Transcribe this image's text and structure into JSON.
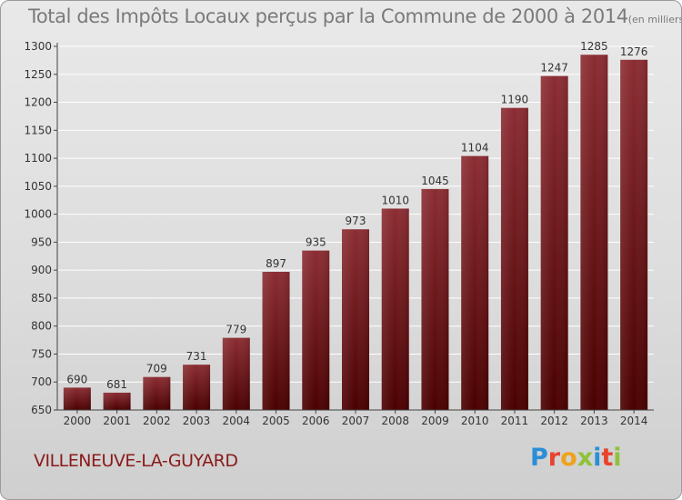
{
  "header": {
    "title": "Total des Impôts Locaux perçus par la Commune de 2000 à 2014",
    "unit": "(en milliers d'€)"
  },
  "footer": {
    "commune": "VILLENEUVE-LA-GUYARD",
    "logo_letters": [
      "P",
      "r",
      "o",
      "x",
      "i",
      "t",
      "i"
    ],
    "logo_colors": [
      "#2a8fd6",
      "#e8432c",
      "#f0a21a",
      "#8fc23a",
      "#2a8fd6",
      "#e8432c",
      "#8fc23a"
    ]
  },
  "colors": {
    "bar_top": "#8b2d33",
    "bar_bottom": "#4a0000",
    "grid": "#ffffff",
    "axis": "#444444",
    "text": "#333333"
  },
  "chart_data": {
    "type": "bar",
    "title": "Total des Impôts Locaux perçus par la Commune de 2000 à 2014",
    "ylabel": "(en milliers d'€)",
    "xlabel": "",
    "ylim": [
      650,
      1300
    ],
    "yticks": [
      650,
      700,
      750,
      800,
      850,
      900,
      950,
      1000,
      1050,
      1100,
      1150,
      1200,
      1250,
      1300
    ],
    "categories": [
      "2000",
      "2001",
      "2002",
      "2003",
      "2004",
      "2005",
      "2006",
      "2007",
      "2008",
      "2009",
      "2010",
      "2011",
      "2012",
      "2013",
      "2014"
    ],
    "values": [
      690,
      681,
      709,
      731,
      779,
      897,
      935,
      973,
      1010,
      1045,
      1104,
      1190,
      1247,
      1285,
      1276
    ],
    "grid": true,
    "data_labels": true
  }
}
